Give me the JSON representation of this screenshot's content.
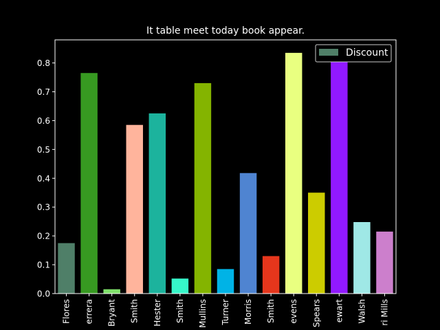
{
  "chart_data": {
    "type": "bar",
    "title": "It table meet today book appear.",
    "xlabel": "",
    "ylabel": "",
    "ylim": [
      0,
      0.88
    ],
    "yticks": [
      0.0,
      0.1,
      0.2,
      0.3,
      0.4,
      0.5,
      0.6,
      0.7,
      0.8
    ],
    "ytick_labels": [
      "0.0",
      "0.1",
      "0.2",
      "0.3",
      "0.4",
      "0.5",
      "0.6",
      "0.7",
      "0.8"
    ],
    "categories": [
      "Flores",
      "errera",
      "Bryant",
      "Smith",
      "Hester",
      "Smith",
      "Mullins",
      "Turner",
      "Morris",
      "Smith",
      "evens",
      "Spears",
      "ewart",
      "Walsh",
      "ri Mills"
    ],
    "values": [
      0.175,
      0.765,
      0.015,
      0.585,
      0.625,
      0.052,
      0.73,
      0.085,
      0.418,
      0.13,
      0.835,
      0.35,
      0.845,
      0.248,
      0.215
    ],
    "colors": [
      "#4f7f68",
      "#379a21",
      "#7fe06a",
      "#ffb49c",
      "#1cb39d",
      "#36f7c9",
      "#84b400",
      "#00b3e6",
      "#4f84d1",
      "#e5361c",
      "#e9ff80",
      "#cccc00",
      "#9119ff",
      "#9fe8e6",
      "#cc7fcc"
    ],
    "legend": {
      "label": "Discount",
      "color": "#4f7f68",
      "position": "upper right"
    },
    "grid": false
  }
}
